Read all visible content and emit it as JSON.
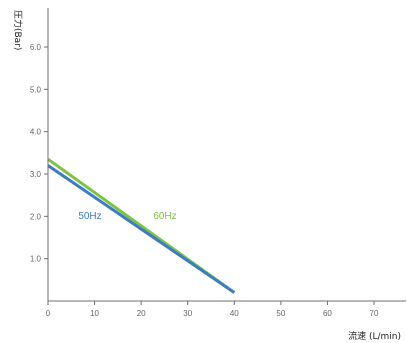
{
  "chart_data": {
    "type": "line",
    "xlabel": "流速 (L/min)",
    "ylabel": "圧力(Bar)",
    "xlim": [
      0,
      75
    ],
    "ylim": [
      0,
      7
    ],
    "x_ticks": [
      "0",
      "10",
      "20",
      "30",
      "40",
      "50",
      "60",
      "70"
    ],
    "y_ticks": [
      "1.0",
      "2.0",
      "3.0",
      "4.0",
      "5.0",
      "6.0"
    ],
    "grid": false,
    "series": [
      {
        "name": "50Hz",
        "color": "#3a7dc4",
        "points": [
          {
            "x": 0,
            "y": 3.2
          },
          {
            "x": 40,
            "y": 0.2
          }
        ]
      },
      {
        "name": "60Hz",
        "color": "#7dc241",
        "points": [
          {
            "x": 0,
            "y": 3.35
          },
          {
            "x": 40,
            "y": 0.2
          }
        ]
      }
    ]
  }
}
